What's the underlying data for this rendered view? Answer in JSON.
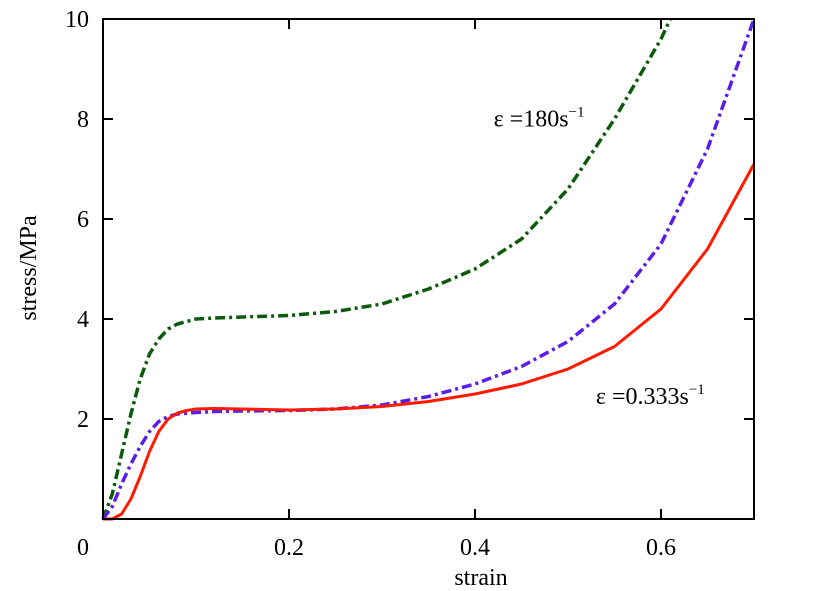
{
  "chart_data": {
    "type": "line",
    "title": "",
    "xlabel": "strain",
    "ylabel": "stress/MPa",
    "xlim": [
      0,
      0.7
    ],
    "ylim": [
      0,
      10
    ],
    "x_ticks": [
      {
        "value": 0,
        "label": "0"
      },
      {
        "value": 0.2,
        "label": "0.2"
      },
      {
        "value": 0.4,
        "label": "0.4"
      },
      {
        "value": 0.6,
        "label": "0.6"
      }
    ],
    "y_ticks": [
      {
        "value": 2,
        "label": "2"
      },
      {
        "value": 4,
        "label": "4"
      },
      {
        "value": 6,
        "label": "6"
      },
      {
        "value": 8,
        "label": "8"
      },
      {
        "value": 10,
        "label": "10"
      }
    ],
    "grid": false,
    "series": [
      {
        "color": "#0b5a0b",
        "style": "dashdot",
        "x": [
          0,
          0.01,
          0.02,
          0.03,
          0.04,
          0.05,
          0.06,
          0.07,
          0.08,
          0.09,
          0.1,
          0.12,
          0.15,
          0.2,
          0.25,
          0.3,
          0.35,
          0.4,
          0.45,
          0.5,
          0.55,
          0.6,
          0.61
        ],
        "y": [
          0,
          0.5,
          1.3,
          2.1,
          2.8,
          3.3,
          3.6,
          3.8,
          3.9,
          3.95,
          4.0,
          4.02,
          4.04,
          4.07,
          4.15,
          4.3,
          4.6,
          5.0,
          5.6,
          6.6,
          8.0,
          9.6,
          10.0
        ]
      },
      {
        "color": "#5a1ee6",
        "style": "dashdot",
        "x": [
          0,
          0.01,
          0.02,
          0.03,
          0.04,
          0.05,
          0.06,
          0.07,
          0.08,
          0.1,
          0.12,
          0.15,
          0.2,
          0.25,
          0.3,
          0.35,
          0.4,
          0.45,
          0.5,
          0.55,
          0.6,
          0.65,
          0.7
        ],
        "y": [
          0,
          0.25,
          0.7,
          1.1,
          1.45,
          1.75,
          1.95,
          2.05,
          2.1,
          2.13,
          2.15,
          2.16,
          2.17,
          2.2,
          2.28,
          2.45,
          2.7,
          3.05,
          3.55,
          4.3,
          5.5,
          7.4,
          10.0
        ]
      },
      {
        "color": "#ff1a00",
        "style": "solid",
        "x": [
          0,
          0.01,
          0.02,
          0.03,
          0.04,
          0.05,
          0.06,
          0.07,
          0.08,
          0.09,
          0.1,
          0.12,
          0.15,
          0.2,
          0.25,
          0.3,
          0.35,
          0.4,
          0.45,
          0.5,
          0.55,
          0.6,
          0.65,
          0.7
        ],
        "y": [
          0,
          0.0,
          0.1,
          0.4,
          0.85,
          1.35,
          1.75,
          2.0,
          2.12,
          2.17,
          2.2,
          2.21,
          2.2,
          2.18,
          2.2,
          2.25,
          2.35,
          2.5,
          2.7,
          3.0,
          3.45,
          4.2,
          5.4,
          7.1
        ]
      }
    ],
    "annotations": [
      {
        "text": "ε =180s",
        "superscript": "−1",
        "x": 0.42,
        "y": 7.85
      },
      {
        "text": "ε =0.333s",
        "superscript": "−1",
        "x": 0.53,
        "y": 2.3
      }
    ]
  }
}
